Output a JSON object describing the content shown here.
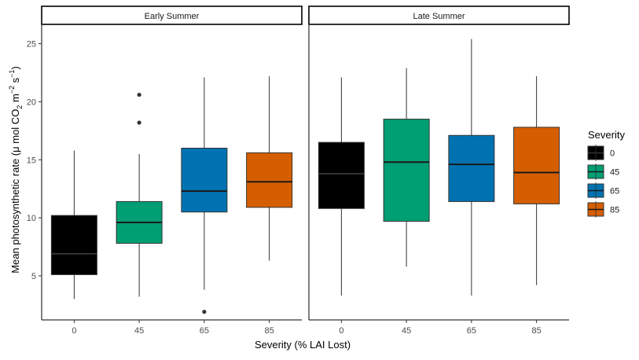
{
  "chart_data": {
    "type": "box",
    "facets": [
      "Early Summer",
      "Late Summer"
    ],
    "categories": [
      "0",
      "45",
      "65",
      "85"
    ],
    "xlabel": "Severity (% LAI Lost)",
    "ylabel_parts": {
      "prefix": "Mean photosynthetic rate (",
      "mu": "μ",
      "mid1": " mol CO",
      "sub2": "2",
      "mid2": " m",
      "sup_m2": "−2",
      "mid3": " s",
      "sup_s1": "−1",
      "suffix": ")"
    },
    "ylim": [
      1.2,
      26.6
    ],
    "yticks": [
      5,
      10,
      15,
      20,
      25
    ],
    "grid": false,
    "legend": {
      "title": "Severity",
      "position": "right",
      "entries": [
        "0",
        "45",
        "65",
        "85"
      ]
    },
    "colors": {
      "0": "#000000",
      "45": "#009E73",
      "65": "#0072B2",
      "85": "#D55E00"
    },
    "median_colors": {
      "0": "#333333",
      "45": "#1a1a1a",
      "65": "#1a1a1a",
      "85": "#1a1a1a"
    },
    "boxes": [
      {
        "facet": "Early Summer",
        "severity": "0",
        "whisker_low": 3.0,
        "q1": 5.1,
        "median": 6.9,
        "q3": 10.2,
        "whisker_high": 15.8,
        "outliers": []
      },
      {
        "facet": "Early Summer",
        "severity": "45",
        "whisker_low": 3.2,
        "q1": 7.8,
        "median": 9.6,
        "q3": 11.4,
        "whisker_high": 15.5,
        "outliers": [
          18.2,
          20.6
        ]
      },
      {
        "facet": "Early Summer",
        "severity": "65",
        "whisker_low": 3.8,
        "q1": 10.5,
        "median": 12.3,
        "q3": 16.0,
        "whisker_high": 22.1,
        "outliers": [
          1.9
        ]
      },
      {
        "facet": "Early Summer",
        "severity": "85",
        "whisker_low": 6.3,
        "q1": 10.9,
        "median": 13.1,
        "q3": 15.6,
        "whisker_high": 22.2,
        "outliers": []
      },
      {
        "facet": "Late Summer",
        "severity": "0",
        "whisker_low": 3.3,
        "q1": 10.8,
        "median": 13.8,
        "q3": 16.5,
        "whisker_high": 22.1,
        "outliers": []
      },
      {
        "facet": "Late Summer",
        "severity": "45",
        "whisker_low": 5.8,
        "q1": 9.7,
        "median": 14.8,
        "q3": 18.5,
        "whisker_high": 22.9,
        "outliers": []
      },
      {
        "facet": "Late Summer",
        "severity": "65",
        "whisker_low": 3.3,
        "q1": 11.4,
        "median": 14.6,
        "q3": 17.1,
        "whisker_high": 25.4,
        "outliers": []
      },
      {
        "facet": "Late Summer",
        "severity": "85",
        "whisker_low": 4.2,
        "q1": 11.2,
        "median": 13.9,
        "q3": 17.8,
        "whisker_high": 22.2,
        "outliers": []
      }
    ]
  }
}
